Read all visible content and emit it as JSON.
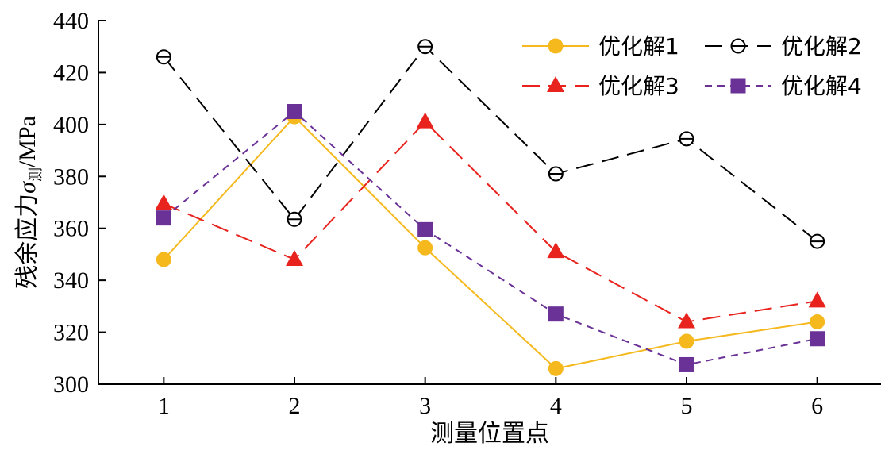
{
  "chart_data": {
    "type": "line",
    "title": "",
    "xlabel": "测量位置点",
    "ylabel": {
      "prefix": "残余应力",
      "symbol": "σ",
      "subscript": "测",
      "unit": "/MPa"
    },
    "x": [
      1,
      2,
      3,
      4,
      5,
      6
    ],
    "x_ticks": [
      "1",
      "2",
      "3",
      "4",
      "5",
      "6"
    ],
    "xlim": [
      0.5,
      6.5
    ],
    "ylim": [
      300,
      440
    ],
    "y_ticks": [
      "300",
      "320",
      "340",
      "360",
      "380",
      "400",
      "420",
      "440"
    ],
    "grid": false,
    "legend_position": "top-right",
    "series": [
      {
        "name": "优化解1",
        "values": [
          348,
          403,
          352.5,
          306,
          316.5,
          324
        ],
        "color": "#F5B91E",
        "marker": "circle-filled",
        "dash": "solid"
      },
      {
        "name": "优化解2",
        "values": [
          426,
          363.5,
          430,
          381,
          394.5,
          355
        ],
        "color": "#000000",
        "marker": "circle-open-slash",
        "dash": "long-dash"
      },
      {
        "name": "优化解3",
        "values": [
          369.5,
          348,
          401,
          351,
          324,
          332
        ],
        "color": "#E8231E",
        "marker": "triangle-filled",
        "dash": "long-dash"
      },
      {
        "name": "优化解4",
        "values": [
          364,
          405,
          359.5,
          327,
          307.5,
          317.5
        ],
        "color": "#6A3296",
        "marker": "square-filled",
        "dash": "short-dash"
      }
    ]
  }
}
